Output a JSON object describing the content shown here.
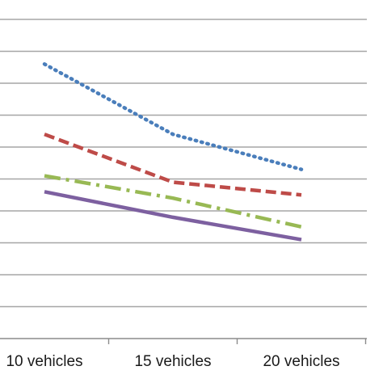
{
  "chart_data": {
    "type": "line",
    "categories": [
      "10 vehicles",
      "15 vehicles",
      "20 vehicles"
    ],
    "ylim": [
      0,
      10
    ],
    "grid": true,
    "series": [
      {
        "values": [
          8.6,
          6.4,
          5.3
        ],
        "color": "#4A7EBB",
        "style": "dotted"
      },
      {
        "values": [
          6.4,
          4.9,
          4.5
        ],
        "color": "#BE4B48",
        "style": "dashed"
      },
      {
        "values": [
          5.1,
          4.4,
          3.5
        ],
        "color": "#98B954",
        "style": "dash-dot"
      },
      {
        "values": [
          4.6,
          3.8,
          3.1
        ],
        "color": "#7D60A0",
        "style": "solid"
      }
    ]
  }
}
